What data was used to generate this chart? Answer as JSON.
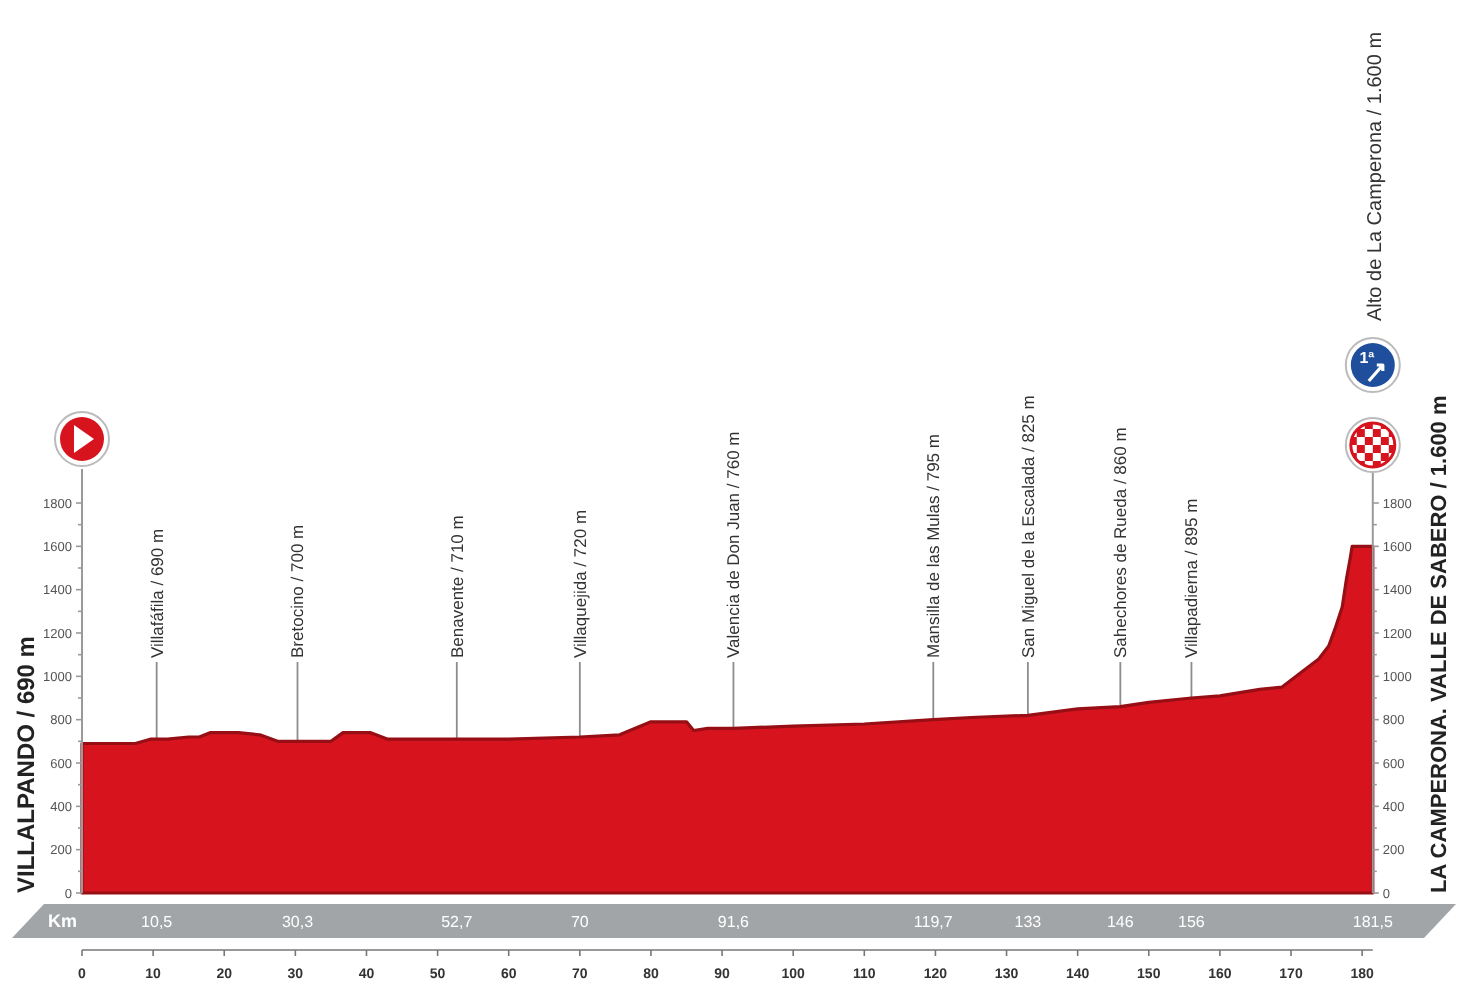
{
  "chart_data": {
    "type": "area",
    "x": [
      0,
      7.5,
      9.6,
      12,
      15,
      16.5,
      18,
      22,
      25,
      27.5,
      30.3,
      35,
      36.7,
      40.6,
      43,
      52.7,
      60,
      70,
      75.6,
      80,
      85,
      86,
      88,
      91.6,
      100,
      110,
      119.7,
      125,
      133,
      140,
      146,
      150,
      156,
      160,
      165.6,
      168.7,
      171.5,
      173.9,
      175.3,
      176.2,
      177.2,
      177.8,
      178.3,
      178.6,
      181.5
    ],
    "series": [
      {
        "color": "#d7141e",
        "values": [
          690,
          690,
          710,
          710,
          720,
          720,
          740,
          740,
          730,
          700,
          700,
          700,
          740,
          740,
          710,
          710,
          710,
          720,
          730,
          790,
          790,
          750,
          760,
          760,
          770,
          780,
          800,
          810,
          820,
          850,
          860,
          880,
          900,
          910,
          940,
          950,
          1020,
          1080,
          1140,
          1220,
          1320,
          1450,
          1540,
          1600,
          1600
        ]
      }
    ],
    "xlim": [
      0,
      181.5
    ],
    "xticks": [
      0,
      10,
      20,
      30,
      40,
      50,
      60,
      70,
      80,
      90,
      100,
      110,
      120,
      130,
      140,
      150,
      160,
      170,
      180
    ],
    "ylim": [
      0,
      1800
    ],
    "yticks": [
      0,
      {
        "value": 100,
        "label": null
      },
      200,
      {
        "value": 300,
        "label": null
      },
      400,
      {
        "value": 500,
        "label": null
      },
      600,
      {
        "value": 700,
        "label": null
      },
      800,
      {
        "value": 900,
        "label": null
      },
      1000,
      {
        "value": 1100,
        "label": null
      },
      1200,
      {
        "value": 1300,
        "label": null
      },
      1400,
      {
        "value": 1500,
        "label": null
      },
      1600,
      {
        "value": 1700,
        "label": null
      },
      1800
    ],
    "y2lim": [
      0,
      1800
    ],
    "y2ticks": [
      0,
      {
        "value": 100,
        "label": null
      },
      200,
      {
        "value": 300,
        "label": null
      },
      400,
      {
        "value": 500,
        "label": null
      },
      600,
      {
        "value": 700,
        "label": null
      },
      800,
      {
        "value": 900,
        "label": null
      },
      1000,
      {
        "value": 1100,
        "label": null
      },
      1200,
      {
        "value": 1300,
        "label": null
      },
      1400,
      {
        "value": 1500,
        "label": null
      },
      1600,
      {
        "value": 1700,
        "label": null
      },
      1800
    ],
    "x2lim": [
      0,
      181.5
    ],
    "x2label": "Km",
    "x2ticks": [
      {
        "value": 10.5,
        "label": "10,5"
      },
      {
        "value": 30.3,
        "label": "30,3"
      },
      {
        "value": 52.7,
        "label": "52,7"
      },
      70,
      {
        "value": 91.6,
        "label": "91,6"
      },
      {
        "value": 119.7,
        "label": "119,7"
      },
      133,
      146,
      156,
      {
        "value": 181.5,
        "label": "181,5"
      }
    ],
    "ylabel": "VILLALPANDO / 690 m",
    "y2label": "LA CAMPERONA. VALLE DE SABERO / 1.600 m",
    "ref_lines": [
      {
        "axis": "x",
        "value": 10.5,
        "label": "Villafáfila / 690 m"
      },
      {
        "axis": "x",
        "value": 30.3,
        "label": "Bretocino / 700 m"
      },
      {
        "axis": "x",
        "value": 52.7,
        "label": "Benavente / 710 m"
      },
      {
        "axis": "x",
        "value": 70,
        "label": "Villaquejida / 720 m"
      },
      {
        "axis": "x",
        "value": 91.6,
        "label": "Valencia de Don Juan / 760 m"
      },
      {
        "axis": "x",
        "value": 119.7,
        "label": "Mansilla de las Mulas / 795 m"
      },
      {
        "axis": "x",
        "value": 133,
        "label": "San Miguel de la Escalada / 825 m"
      },
      {
        "axis": "x",
        "value": 146,
        "label": "Sahechores de Rueda / 860 m"
      },
      {
        "axis": "x",
        "value": 156,
        "label": "Villapadierna / 895 m"
      }
    ],
    "annotations": [
      "1ª",
      "Alto de La Camperona / 1.600 m"
    ]
  }
}
